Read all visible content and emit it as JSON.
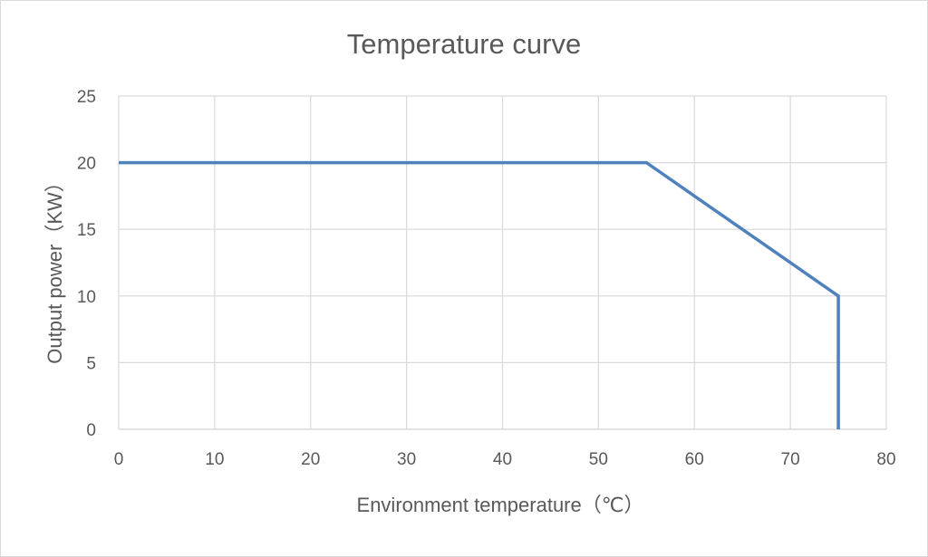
{
  "chart_data": {
    "type": "line",
    "title": "Temperature curve",
    "xlabel": "Environment temperature（℃）",
    "ylabel": "Output power（KW）",
    "xlim": [
      0,
      80
    ],
    "ylim": [
      0,
      25
    ],
    "x_ticks": [
      0,
      10,
      20,
      30,
      40,
      50,
      60,
      70,
      80
    ],
    "y_ticks": [
      0,
      5,
      10,
      15,
      20,
      25
    ],
    "grid": true,
    "legend": "none",
    "series": [
      {
        "name": "Output power",
        "color": "#4f81bd",
        "x": [
          0,
          55,
          75,
          75
        ],
        "y": [
          20,
          20,
          10,
          0
        ]
      }
    ]
  }
}
